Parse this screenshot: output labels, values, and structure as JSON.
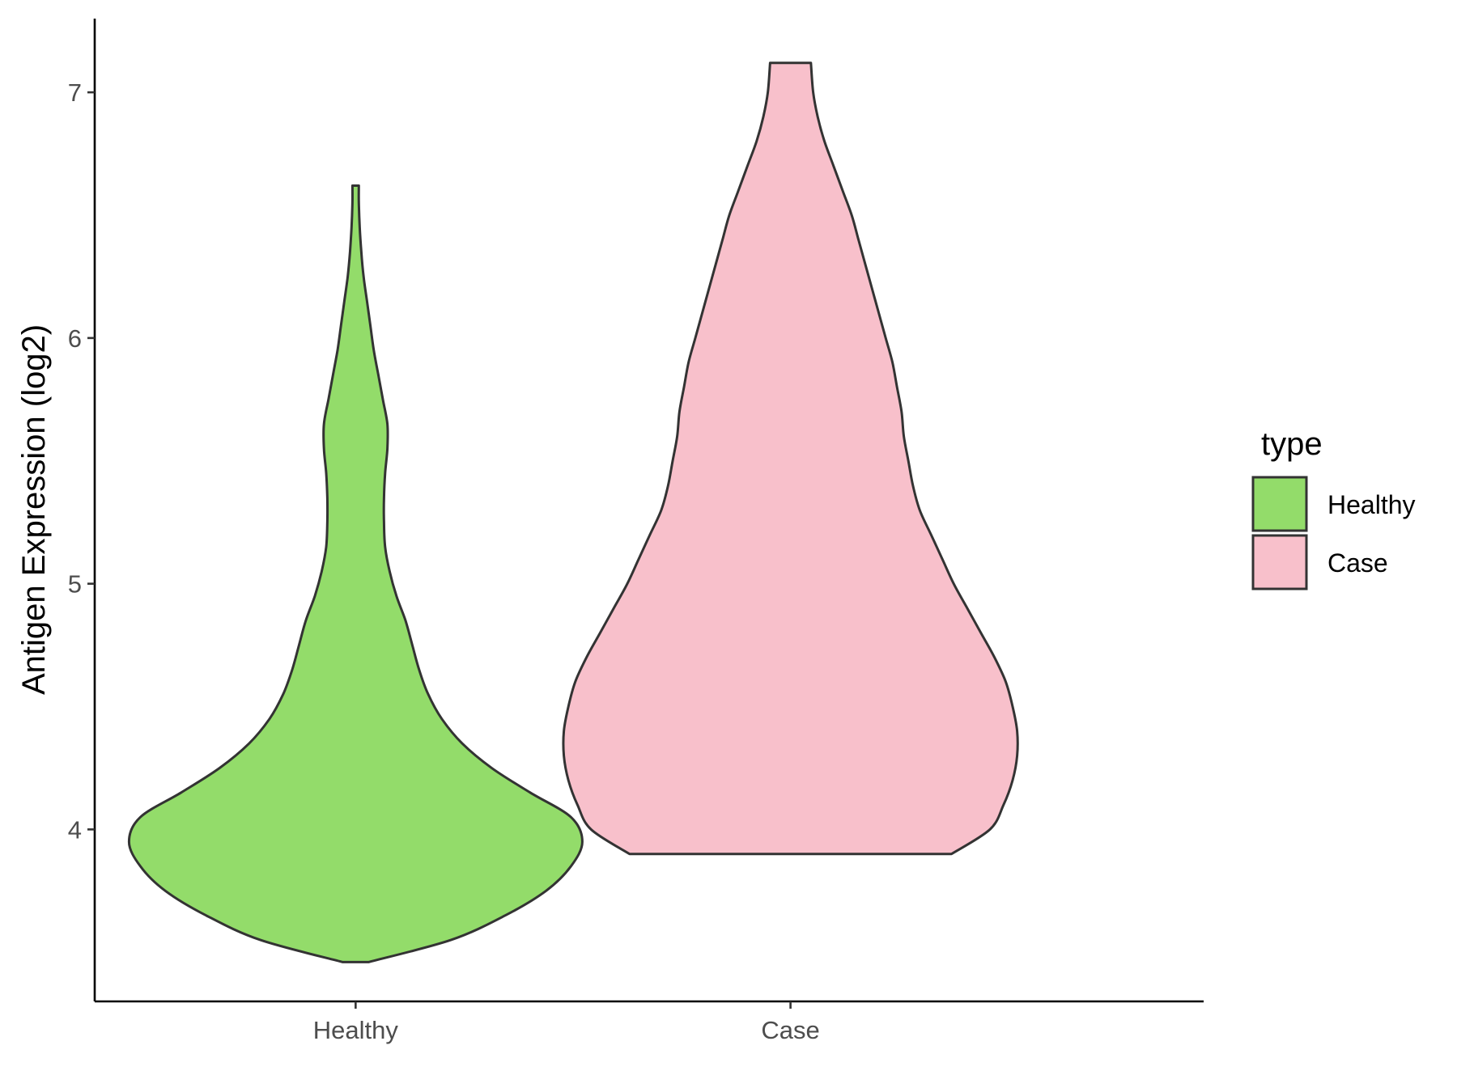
{
  "chart_data": {
    "type": "violin",
    "xlabel": "",
    "ylabel": "Antigen Expression (log2)",
    "ylim": [
      3.3,
      7.3
    ],
    "yticks": [
      "4",
      "5",
      "6",
      "7"
    ],
    "categories": [
      "Healthy",
      "Case"
    ],
    "grid": false,
    "legend": {
      "title": "type",
      "position": "right",
      "entries": [
        "Healthy",
        "Case"
      ]
    },
    "series": [
      {
        "name": "Healthy",
        "color": "#93dc6a",
        "min": 3.46,
        "max": 6.62,
        "density": [
          [
            3.46,
            0.057
          ],
          [
            3.55,
            0.42
          ],
          [
            3.65,
            0.66
          ],
          [
            3.75,
            0.84
          ],
          [
            3.85,
            0.95
          ],
          [
            3.95,
            1.0
          ],
          [
            4.05,
            0.95
          ],
          [
            4.15,
            0.77
          ],
          [
            4.25,
            0.6
          ],
          [
            4.35,
            0.47
          ],
          [
            4.45,
            0.38
          ],
          [
            4.55,
            0.32
          ],
          [
            4.65,
            0.28
          ],
          [
            4.75,
            0.25
          ],
          [
            4.85,
            0.22
          ],
          [
            4.95,
            0.18
          ],
          [
            5.05,
            0.15
          ],
          [
            5.15,
            0.13
          ],
          [
            5.25,
            0.125
          ],
          [
            5.35,
            0.125
          ],
          [
            5.45,
            0.13
          ],
          [
            5.55,
            0.14
          ],
          [
            5.65,
            0.14
          ],
          [
            5.75,
            0.12
          ],
          [
            5.85,
            0.1
          ],
          [
            5.95,
            0.08
          ],
          [
            6.05,
            0.065
          ],
          [
            6.15,
            0.05
          ],
          [
            6.25,
            0.035
          ],
          [
            6.35,
            0.025
          ],
          [
            6.45,
            0.018
          ],
          [
            6.55,
            0.014
          ],
          [
            6.62,
            0.014
          ]
        ]
      },
      {
        "name": "Case",
        "color": "#f8c0cb",
        "min": 3.9,
        "max": 7.12,
        "density": [
          [
            3.9,
            0.71
          ],
          [
            4.0,
            0.88
          ],
          [
            4.1,
            0.94
          ],
          [
            4.2,
            0.98
          ],
          [
            4.3,
            1.0
          ],
          [
            4.4,
            1.0
          ],
          [
            4.5,
            0.98
          ],
          [
            4.6,
            0.95
          ],
          [
            4.7,
            0.9
          ],
          [
            4.8,
            0.84
          ],
          [
            4.9,
            0.78
          ],
          [
            5.0,
            0.72
          ],
          [
            5.1,
            0.67
          ],
          [
            5.2,
            0.62
          ],
          [
            5.3,
            0.57
          ],
          [
            5.4,
            0.54
          ],
          [
            5.5,
            0.52
          ],
          [
            5.6,
            0.5
          ],
          [
            5.7,
            0.49
          ],
          [
            5.8,
            0.47
          ],
          [
            5.9,
            0.45
          ],
          [
            6.0,
            0.42
          ],
          [
            6.1,
            0.39
          ],
          [
            6.2,
            0.36
          ],
          [
            6.3,
            0.33
          ],
          [
            6.4,
            0.3
          ],
          [
            6.5,
            0.27
          ],
          [
            6.6,
            0.23
          ],
          [
            6.7,
            0.19
          ],
          [
            6.8,
            0.15
          ],
          [
            6.9,
            0.12
          ],
          [
            7.0,
            0.1
          ],
          [
            7.12,
            0.09
          ]
        ]
      }
    ]
  }
}
